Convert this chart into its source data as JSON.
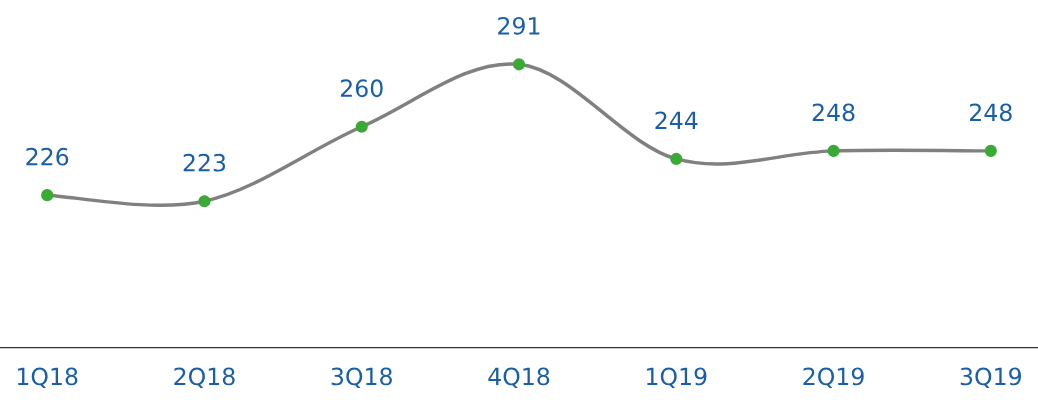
{
  "chart_data": {
    "type": "line",
    "categories": [
      "1Q18",
      "2Q18",
      "3Q18",
      "4Q18",
      "1Q19",
      "2Q19",
      "3Q19"
    ],
    "series": [
      {
        "color": "#808080",
        "colors": [
          "#3aaa35",
          "#3aaa35",
          "#3aaa35",
          "#3aaa35",
          "#3aaa35",
          "#3aaa35",
          "#3aaa35"
        ],
        "values": [
          226,
          223,
          260,
          291,
          244,
          248,
          248
        ]
      }
    ],
    "tick_labels": "x",
    "data_labels": true,
    "marker": "circle",
    "line_style": "solid",
    "grid": false,
    "legend": false
  }
}
